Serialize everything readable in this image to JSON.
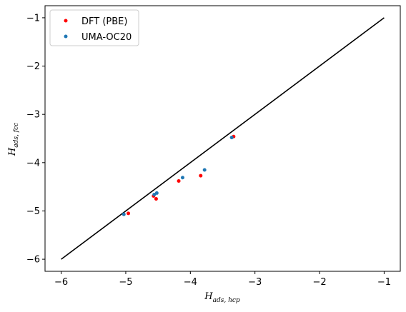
{
  "chart_data": {
    "type": "scatter",
    "title": "",
    "xlabel": {
      "base": "H",
      "sub": "ads, hcp"
    },
    "ylabel": {
      "base": "H",
      "sub": "ads, fcc"
    },
    "xlim": [
      -6.25,
      -0.75
    ],
    "ylim": [
      -6.25,
      -0.75
    ],
    "xticks": [
      -6,
      -5,
      -4,
      -3,
      -2,
      -1
    ],
    "yticks": [
      -6,
      -5,
      -4,
      -3,
      -2,
      -1
    ],
    "xtick_labels": [
      "−6",
      "−5",
      "−4",
      "−3",
      "−2",
      "−1"
    ],
    "ytick_labels": [
      "−6",
      "−5",
      "−4",
      "−3",
      "−2",
      "−1"
    ],
    "grid": false,
    "legend_position": "top-left",
    "reference_line": {
      "x": [
        -6,
        -1
      ],
      "y": [
        -6,
        -1
      ],
      "color": "#000000"
    },
    "series": [
      {
        "name": "DFT (PBE)",
        "color": "#ff0000",
        "x": [
          -4.96,
          -4.57,
          -4.53,
          -4.18,
          -3.84,
          -3.33
        ],
        "y": [
          -5.05,
          -4.69,
          -4.75,
          -4.38,
          -4.27,
          -3.46
        ]
      },
      {
        "name": "UMA-OC20",
        "color": "#1f77b4",
        "x": [
          -5.03,
          -4.56,
          -4.52,
          -4.12,
          -3.78,
          -3.36
        ],
        "y": [
          -5.07,
          -4.66,
          -4.63,
          -4.31,
          -4.15,
          -3.48
        ]
      }
    ]
  }
}
